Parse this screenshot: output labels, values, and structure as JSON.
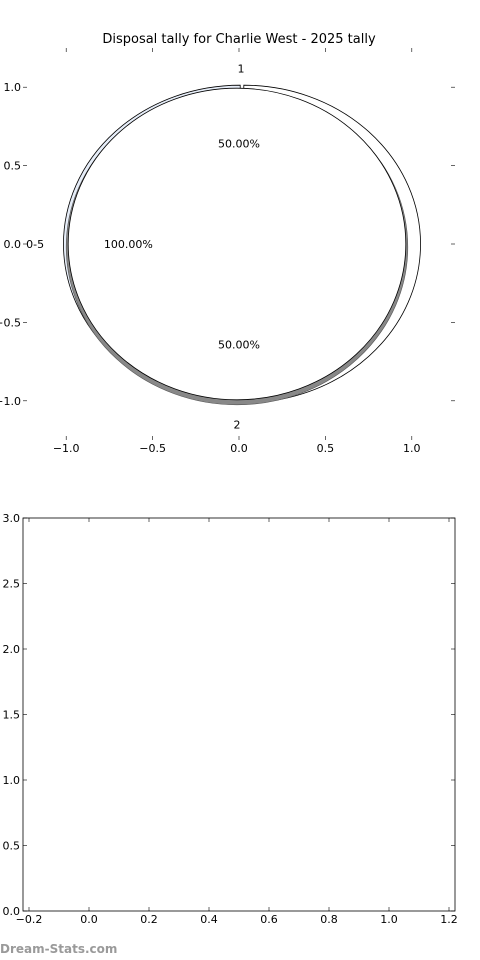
{
  "watermark": "Dream-Stats.com",
  "chart_data": [
    {
      "type": "pie",
      "title": "Disposal tally for Charlie West - 2025 tally",
      "xlim": [
        -1.25,
        1.25
      ],
      "ylim": [
        -1.25,
        1.25
      ],
      "xticks": [
        -1.0,
        -0.5,
        0.0,
        0.5,
        1.0
      ],
      "xtick_labels": [
        "−1.0",
        "−0.5",
        "0.0",
        "0.5",
        "1.0"
      ],
      "yticks": [
        1.0,
        0.5,
        0.0,
        -0.5,
        -1.0
      ],
      "ytick_labels": [
        "1.0",
        "0.5",
        "0.0",
        "−0.5",
        "−1.0"
      ],
      "rings": [
        {
          "slices": [
            {
              "label": "1",
              "value": 50,
              "pct_label": "50.00%",
              "color": "#ffffff"
            },
            {
              "label": "2",
              "value": 50,
              "pct_label": "50.00%",
              "color": "#e6edf8"
            }
          ]
        },
        {
          "slices": [
            {
              "label": "0-5",
              "value": 100,
              "pct_label": "100.00%",
              "color": "#ffffff"
            }
          ]
        }
      ]
    },
    {
      "type": "scatter",
      "title": "",
      "xlim": [
        -0.22,
        1.22
      ],
      "ylim": [
        0.0,
        3.0
      ],
      "xticks": [
        -0.2,
        0.0,
        0.2,
        0.4,
        0.6,
        0.8,
        1.0,
        1.2
      ],
      "xtick_labels": [
        "−0.2",
        "0.0",
        "0.2",
        "0.4",
        "0.6",
        "0.8",
        "1.0",
        "1.2"
      ],
      "yticks": [
        0.0,
        0.5,
        1.0,
        1.5,
        2.0,
        2.5,
        3.0
      ],
      "ytick_labels": [
        "0.0",
        "0.5",
        "1.0",
        "1.5",
        "2.0",
        "2.5",
        "3.0"
      ],
      "points": []
    }
  ]
}
